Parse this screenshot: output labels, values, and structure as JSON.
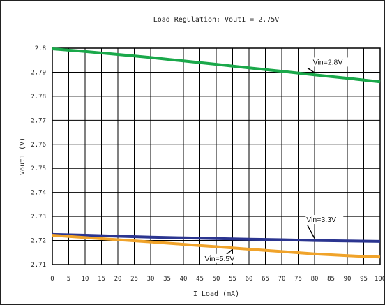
{
  "chart_data": {
    "type": "line",
    "title": "Load Regulation: Vout1 = 2.75V",
    "xlabel": "I Load (mA)",
    "ylabel": "Vout1 (V)",
    "xlim": [
      0,
      100
    ],
    "ylim": [
      2.71,
      2.8
    ],
    "x_ticks": [
      0,
      5,
      10,
      15,
      20,
      25,
      30,
      35,
      40,
      45,
      50,
      55,
      60,
      65,
      70,
      75,
      80,
      85,
      90,
      95,
      100
    ],
    "x_tick_labels": [
      "0",
      "5",
      "10",
      "15",
      "20",
      "25",
      "30",
      "35",
      "40",
      "45",
      "50",
      "55",
      "60",
      "65",
      "70",
      "75",
      "80",
      "85",
      "90",
      "95",
      "100"
    ],
    "y_ticks": [
      2.71,
      2.72,
      2.73,
      2.74,
      2.75,
      2.76,
      2.77,
      2.78,
      2.79,
      2.8
    ],
    "y_tick_labels": [
      "2.71",
      "2.72",
      "2.73",
      "2.74",
      "2.75",
      "2.76",
      "2.77",
      "2.78",
      "2.79",
      "2.8"
    ],
    "grid": true,
    "series": [
      {
        "name": "Vin=2.8V",
        "color": "#1aa84a",
        "x": [
          0,
          10,
          20,
          30,
          40,
          50,
          60,
          70,
          80,
          90,
          100
        ],
        "y": [
          2.7997,
          2.7986,
          2.7974,
          2.7961,
          2.7947,
          2.7933,
          2.7918,
          2.7904,
          2.7889,
          2.7875,
          2.786
        ]
      },
      {
        "name": "Vin=3.3V",
        "color": "#2b3590",
        "x": [
          0,
          10,
          20,
          30,
          40,
          50,
          60,
          70,
          80,
          90,
          100
        ],
        "y": [
          2.7225,
          2.7222,
          2.7218,
          2.7214,
          2.7211,
          2.7208,
          2.7205,
          2.7203,
          2.72,
          2.7198,
          2.7196
        ]
      },
      {
        "name": "Vin=5.5V",
        "color": "#f0a32a",
        "x": [
          0,
          10,
          20,
          30,
          40,
          50,
          60,
          70,
          80,
          90,
          100
        ],
        "y": [
          2.7222,
          2.7212,
          2.7203,
          2.7194,
          2.7184,
          2.7174,
          2.7164,
          2.7154,
          2.7144,
          2.7137,
          2.7131
        ]
      }
    ],
    "annotations": [
      {
        "text": "Vin=2.8V",
        "series": 0,
        "at_x": 80,
        "label_x": 79.5,
        "label_y": 2.7932
      },
      {
        "text": "Vin=3.3V",
        "series": 1,
        "at_x": 80,
        "label_x": 77.5,
        "label_y": 2.7277
      },
      {
        "text": "Vin=5.5V",
        "series": 2,
        "at_x": 55,
        "label_x": 46.5,
        "label_y": 2.7115
      }
    ]
  }
}
